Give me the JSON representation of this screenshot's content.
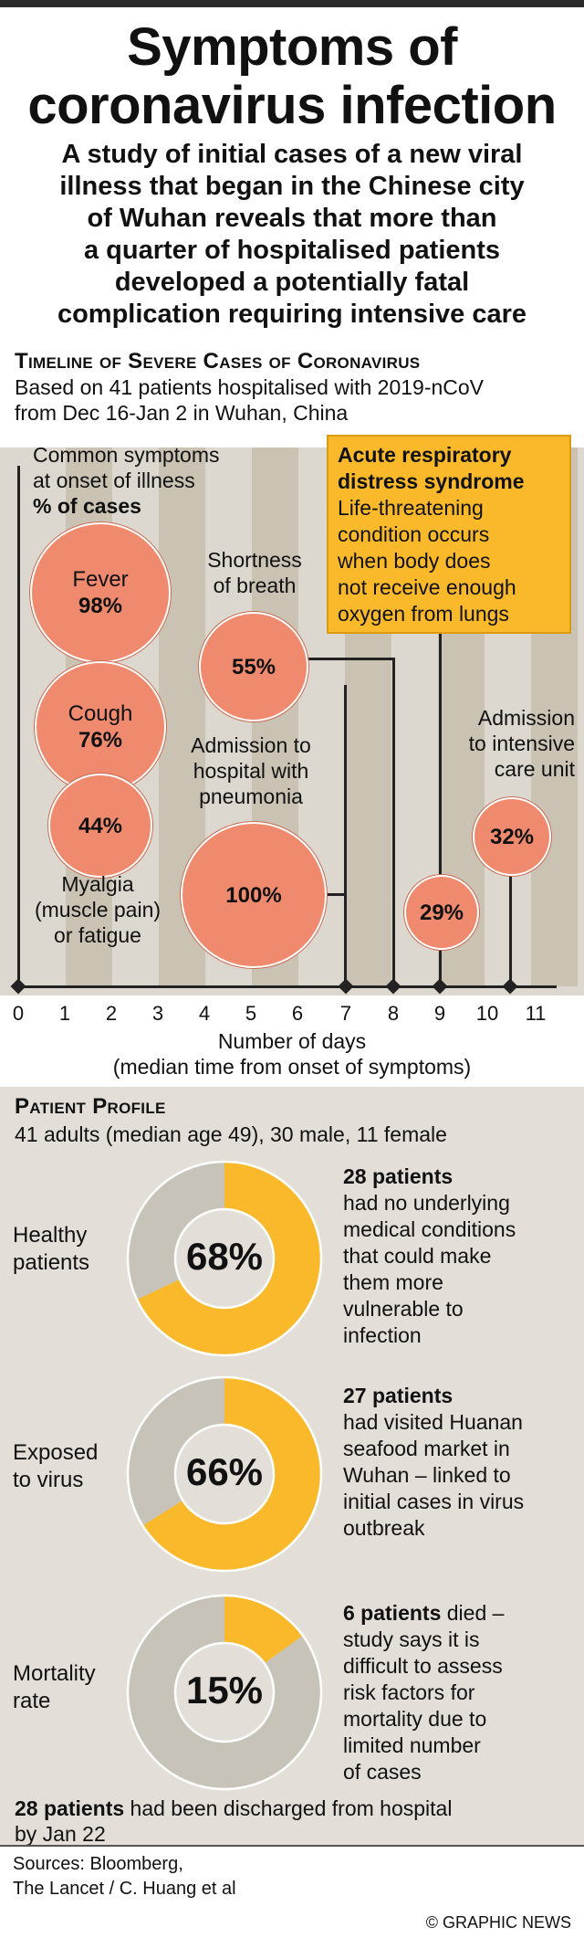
{
  "title_line1": "Symptoms of",
  "title_line2": "coronavirus infection",
  "subtitle": [
    "A study of initial cases of a new viral",
    "illness that began in the Chinese city",
    "of Wuhan reveals that more than",
    "a quarter of hospitalised patients",
    "developed a potentially fatal",
    "complication requiring intensive care"
  ],
  "timeline": {
    "heading": "Timeline of Severe Cases of Coronavirus",
    "description": [
      "Based on 41 patients hospitalised with 2019-nCoV",
      "from Dec 16-Jan 2 in Wuhan, China"
    ],
    "symptoms_heading": [
      "Common symptoms",
      "at onset of illness",
      "% of cases"
    ],
    "circles": {
      "fever": {
        "label": "Fever",
        "pct": "98%"
      },
      "cough": {
        "label": "Cough",
        "pct": "76%"
      },
      "myalgia": {
        "pct": "44%"
      },
      "breath": {
        "pct": "55%"
      },
      "pneumonia": {
        "pct": "100%"
      },
      "ards": {
        "pct": "29%"
      },
      "icu": {
        "pct": "32%"
      }
    },
    "labels": {
      "myalgia": [
        "Myalgia",
        "(muscle pain)",
        "or fatigue"
      ],
      "breath": [
        "Shortness",
        "of breath"
      ],
      "pneumonia": [
        "Admission to",
        "hospital with",
        "pneumonia"
      ],
      "icu": [
        "Admission",
        "to intensive",
        "care unit"
      ]
    },
    "ards_box": {
      "title": [
        "Acute respiratory",
        "distress syndrome"
      ],
      "text": [
        "Life-threatening",
        "condition occurs",
        "when body does",
        "not receive enough",
        "oxygen from lungs"
      ]
    },
    "ticks": [
      "0",
      "1",
      "2",
      "3",
      "4",
      "5",
      "6",
      "7",
      "8",
      "9",
      "10",
      "11"
    ],
    "axis_label": [
      "Number of days",
      "(median time from onset of symptoms)"
    ]
  },
  "profile": {
    "heading": "Patient Profile",
    "description": "41 adults (median age 49), 30 male, 11 female",
    "donuts": [
      {
        "label": [
          "Healthy",
          "patients"
        ],
        "pct": "68%",
        "value": 68,
        "desc_bold": "28 patients",
        "desc": [
          "had no underlying",
          "medical conditions",
          "that could make",
          "them more",
          "vulnerable to",
          "infection"
        ]
      },
      {
        "label": [
          "Exposed",
          "to virus"
        ],
        "pct": "66%",
        "value": 66,
        "desc_bold": "27 patients",
        "desc": [
          "had visited Huanan",
          "seafood market in",
          "Wuhan – linked to",
          "initial cases in virus",
          "outbreak"
        ]
      },
      {
        "label": [
          "Mortality",
          "rate"
        ],
        "pct": "15%",
        "value": 15,
        "desc_bold": "6 patients",
        "desc_first": " died –",
        "desc": [
          "study says it is",
          "difficult to assess",
          "risk factors for",
          "mortality due to",
          "limited number",
          "of cases"
        ]
      }
    ],
    "footnote_bold": "28 patients",
    "footnote": [
      " had been discharged from hospital",
      "by Jan 22"
    ]
  },
  "sources": [
    "Sources: Bloomberg,",
    "The Lancet / C. Huang et al"
  ],
  "copyright": "© GRAPHIC NEWS",
  "colors": {
    "accent": "#f9b92a",
    "salmon": "#ef8a6e",
    "grey": "#c8c3b8"
  }
}
